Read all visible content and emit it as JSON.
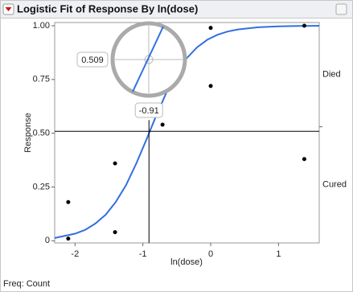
{
  "chart_data": {
    "type": "logistic",
    "title": "Logistic Fit of Response By ln(dose)",
    "x_label": "ln(dose)",
    "y_label": "Response",
    "footer": "Freq: Count",
    "x": [
      -2.1,
      -2.1,
      -1.41,
      -1.41,
      -0.71,
      0,
      0,
      1.38,
      1.38
    ],
    "values": [
      0.18,
      0.01,
      0.36,
      0.04,
      0.54,
      0.99,
      0.72,
      1.0,
      0.38
    ],
    "point_color": "#000000",
    "curve": {
      "color": "#3070e0",
      "x": [
        -2.3,
        -2.0,
        -1.85,
        -1.7,
        -1.55,
        -1.4,
        -1.25,
        -1.1,
        -0.95,
        -0.8,
        -0.65,
        -0.5,
        -0.35,
        -0.2,
        -0.05,
        0.1,
        0.25,
        0.4,
        0.7,
        1.0,
        1.3,
        1.6
      ],
      "values": [
        0.013,
        0.033,
        0.051,
        0.08,
        0.121,
        0.18,
        0.258,
        0.357,
        0.469,
        0.584,
        0.691,
        0.781,
        0.85,
        0.9,
        0.935,
        0.958,
        0.973,
        0.983,
        0.993,
        0.997,
        0.999,
        1.0
      ]
    },
    "crosshair": {
      "x": -0.91,
      "y": 0.509
    },
    "regions": {
      "labels": [
        "Died",
        "Cured"
      ],
      "boundary": 0.53
    },
    "xlim": [
      -2.3,
      1.6
    ],
    "ylim": [
      -0.01,
      1.015
    ],
    "xticks": [
      -2,
      -1,
      0,
      1
    ],
    "yticks": [
      0,
      {
        "value": 0.25,
        "label": "0.25"
      },
      {
        "value": 0.5,
        "label": "0.50"
      },
      {
        "value": 0.75,
        "label": "0.75"
      },
      {
        "value": 1,
        "label": "1.00"
      }
    ]
  }
}
